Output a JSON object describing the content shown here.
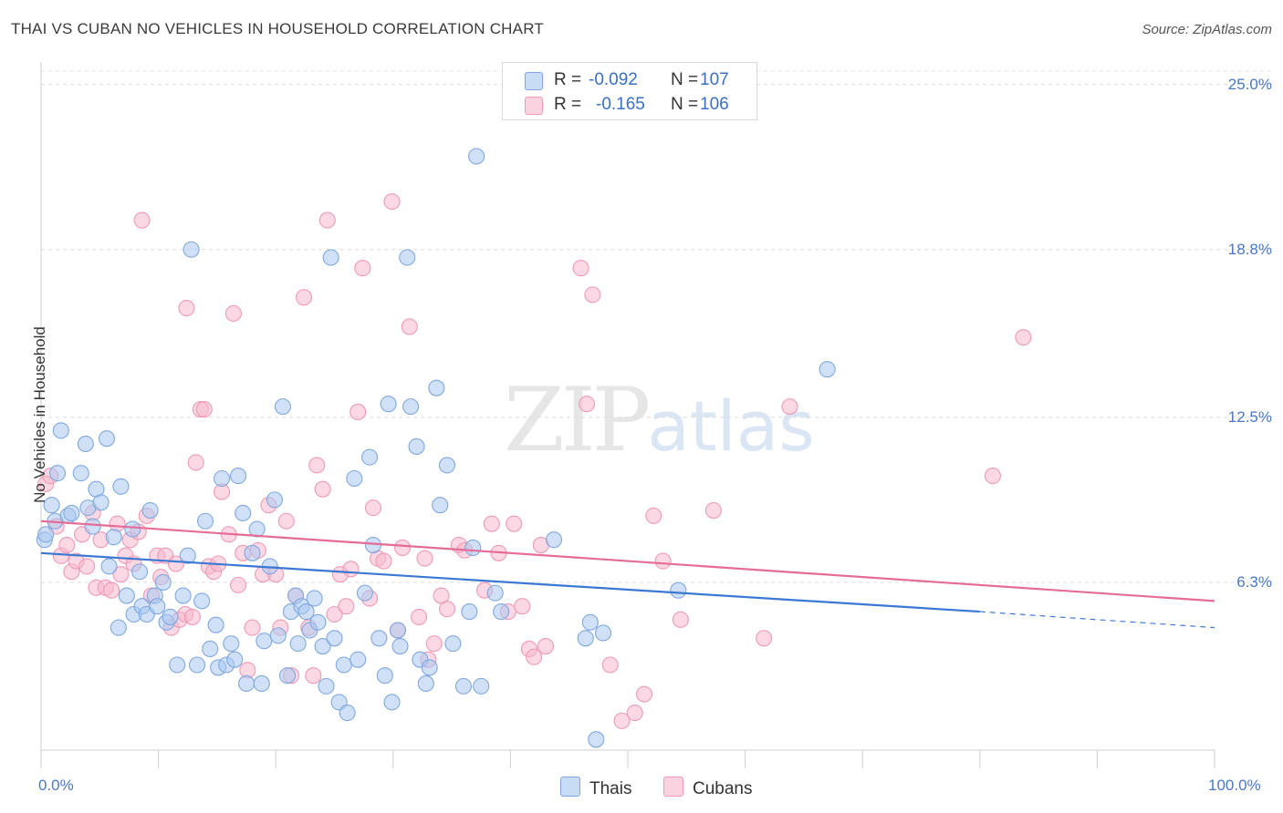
{
  "header": {
    "title": "THAI VS CUBAN NO VEHICLES IN HOUSEHOLD CORRELATION CHART",
    "source": "Source: ZipAtlas.com"
  },
  "watermark": {
    "zip": "ZIP",
    "atlas": "atlas"
  },
  "legend_top": {
    "rows": [
      {
        "r_label": "R =",
        "r_value": "-0.092",
        "n_label": "N =",
        "n_value": "107",
        "color": "#a9c8f0"
      },
      {
        "r_label": "R =",
        "r_value": "-0.165",
        "n_label": "N =",
        "n_value": "106",
        "color": "#f7b8cc"
      }
    ]
  },
  "legend_bottom": {
    "thais": "Thais",
    "cubans": "Cubans"
  },
  "chart_data": {
    "type": "scatter",
    "title": "THAI VS CUBAN NO VEHICLES IN HOUSEHOLD CORRELATION CHART",
    "ylabel": "No Vehicles in Household",
    "xlabel": "",
    "x_tick_labels": [
      "0.0%",
      "100.0%"
    ],
    "y_tick_labels": [
      "25.0%",
      "18.8%",
      "12.5%",
      "6.3%"
    ],
    "y_ticks": [
      25.0,
      18.8,
      12.5,
      6.3
    ],
    "xlim": [
      0,
      100
    ],
    "ylim": [
      0,
      25.5
    ],
    "grid": true,
    "legend": "top-center",
    "colors": {
      "thais": "#3a78d4",
      "cubans": "#e46c96",
      "thais_fill": "#a9c8f0",
      "cubans_fill": "#f7b8cc"
    },
    "series": [
      {
        "name": "Thais",
        "r": -0.092,
        "n": 107,
        "trend": {
          "x0": 0,
          "y0": 7.4,
          "x1": 80,
          "y1": 5.2,
          "dash_to_x": 100,
          "dash_to_y": 4.6
        },
        "points": [
          [
            0.3,
            7.9
          ],
          [
            0.4,
            8.1
          ],
          [
            0.9,
            9.2
          ],
          [
            1.2,
            8.6
          ],
          [
            1.4,
            10.4
          ],
          [
            1.7,
            12.0
          ],
          [
            2.3,
            8.8
          ],
          [
            2.6,
            8.9
          ],
          [
            3.4,
            10.4
          ],
          [
            3.8,
            11.5
          ],
          [
            4.0,
            9.1
          ],
          [
            4.4,
            8.4
          ],
          [
            4.7,
            9.8
          ],
          [
            5.1,
            9.3
          ],
          [
            5.6,
            11.7
          ],
          [
            5.8,
            6.9
          ],
          [
            6.2,
            8.0
          ],
          [
            6.6,
            4.6
          ],
          [
            6.8,
            9.9
          ],
          [
            7.3,
            5.8
          ],
          [
            7.8,
            8.3
          ],
          [
            7.9,
            5.1
          ],
          [
            8.4,
            6.7
          ],
          [
            8.6,
            5.4
          ],
          [
            9.0,
            5.1
          ],
          [
            9.3,
            9.0
          ],
          [
            9.7,
            5.8
          ],
          [
            9.9,
            5.4
          ],
          [
            10.4,
            6.3
          ],
          [
            10.7,
            4.8
          ],
          [
            11.0,
            5.0
          ],
          [
            11.6,
            3.2
          ],
          [
            12.1,
            5.8
          ],
          [
            12.5,
            7.3
          ],
          [
            12.8,
            18.8
          ],
          [
            13.3,
            3.2
          ],
          [
            13.7,
            5.6
          ],
          [
            14.0,
            8.6
          ],
          [
            14.4,
            3.8
          ],
          [
            14.9,
            4.7
          ],
          [
            15.1,
            3.1
          ],
          [
            15.4,
            10.2
          ],
          [
            15.8,
            3.2
          ],
          [
            16.2,
            4.0
          ],
          [
            16.5,
            3.4
          ],
          [
            16.8,
            10.3
          ],
          [
            17.2,
            8.9
          ],
          [
            17.5,
            2.5
          ],
          [
            18.0,
            7.4
          ],
          [
            18.4,
            8.3
          ],
          [
            18.8,
            2.5
          ],
          [
            19.0,
            4.1
          ],
          [
            19.5,
            6.9
          ],
          [
            19.9,
            9.4
          ],
          [
            20.2,
            4.3
          ],
          [
            20.6,
            12.9
          ],
          [
            21.0,
            2.8
          ],
          [
            21.3,
            5.2
          ],
          [
            21.7,
            5.8
          ],
          [
            21.9,
            4.0
          ],
          [
            22.2,
            5.4
          ],
          [
            22.6,
            5.2
          ],
          [
            22.9,
            4.5
          ],
          [
            23.3,
            5.7
          ],
          [
            23.6,
            4.8
          ],
          [
            24.0,
            3.9
          ],
          [
            24.3,
            2.4
          ],
          [
            24.7,
            18.5
          ],
          [
            25.0,
            4.2
          ],
          [
            25.4,
            1.8
          ],
          [
            25.8,
            3.2
          ],
          [
            26.1,
            1.4
          ],
          [
            26.7,
            10.2
          ],
          [
            27.0,
            3.4
          ],
          [
            27.6,
            5.9
          ],
          [
            28.0,
            11.0
          ],
          [
            28.3,
            7.7
          ],
          [
            28.8,
            4.2
          ],
          [
            29.3,
            2.8
          ],
          [
            29.6,
            13.0
          ],
          [
            29.9,
            1.8
          ],
          [
            30.4,
            4.5
          ],
          [
            30.6,
            3.9
          ],
          [
            31.2,
            18.5
          ],
          [
            31.5,
            12.9
          ],
          [
            32.0,
            11.4
          ],
          [
            32.3,
            3.4
          ],
          [
            32.8,
            2.5
          ],
          [
            33.1,
            3.1
          ],
          [
            33.7,
            13.6
          ],
          [
            34.0,
            9.2
          ],
          [
            34.6,
            10.7
          ],
          [
            35.1,
            4.0
          ],
          [
            36.0,
            2.4
          ],
          [
            36.5,
            5.2
          ],
          [
            36.8,
            7.6
          ],
          [
            37.1,
            22.3
          ],
          [
            37.5,
            2.4
          ],
          [
            38.7,
            5.9
          ],
          [
            39.2,
            5.2
          ],
          [
            43.7,
            7.9
          ],
          [
            46.4,
            4.2
          ],
          [
            46.8,
            4.8
          ],
          [
            47.3,
            0.4
          ],
          [
            47.9,
            4.4
          ],
          [
            54.3,
            6.0
          ],
          [
            67.0,
            14.3
          ]
        ]
      },
      {
        "name": "Cubans",
        "r": -0.165,
        "n": 106,
        "trend": {
          "x0": 0,
          "y0": 8.6,
          "x1": 100,
          "y1": 5.6
        },
        "points": [
          [
            0.4,
            10.0
          ],
          [
            0.8,
            10.3
          ],
          [
            1.3,
            8.4
          ],
          [
            1.7,
            7.3
          ],
          [
            2.2,
            7.7
          ],
          [
            2.6,
            6.7
          ],
          [
            3.0,
            7.1
          ],
          [
            3.5,
            8.1
          ],
          [
            3.9,
            6.9
          ],
          [
            4.4,
            8.9
          ],
          [
            4.7,
            6.1
          ],
          [
            5.1,
            7.9
          ],
          [
            5.5,
            6.1
          ],
          [
            6.0,
            6.0
          ],
          [
            6.5,
            8.5
          ],
          [
            6.8,
            6.6
          ],
          [
            7.2,
            7.3
          ],
          [
            7.6,
            7.9
          ],
          [
            7.9,
            7.0
          ],
          [
            8.3,
            8.2
          ],
          [
            8.6,
            19.9
          ],
          [
            9.0,
            8.8
          ],
          [
            9.4,
            5.8
          ],
          [
            9.9,
            7.3
          ],
          [
            10.2,
            6.5
          ],
          [
            10.6,
            7.3
          ],
          [
            11.1,
            4.6
          ],
          [
            11.5,
            7.0
          ],
          [
            11.8,
            4.9
          ],
          [
            12.3,
            5.1
          ],
          [
            12.4,
            16.6
          ],
          [
            12.9,
            5.0
          ],
          [
            13.2,
            10.8
          ],
          [
            13.6,
            12.8
          ],
          [
            13.9,
            12.8
          ],
          [
            14.3,
            6.9
          ],
          [
            14.7,
            6.7
          ],
          [
            15.1,
            7.0
          ],
          [
            15.4,
            9.7
          ],
          [
            16.0,
            8.1
          ],
          [
            16.4,
            16.4
          ],
          [
            16.8,
            6.2
          ],
          [
            17.2,
            7.4
          ],
          [
            17.6,
            3.0
          ],
          [
            18.0,
            4.6
          ],
          [
            18.5,
            7.5
          ],
          [
            18.9,
            6.6
          ],
          [
            19.4,
            9.2
          ],
          [
            20.0,
            6.6
          ],
          [
            20.4,
            4.6
          ],
          [
            20.9,
            8.6
          ],
          [
            21.3,
            2.8
          ],
          [
            21.7,
            5.8
          ],
          [
            22.4,
            17.0
          ],
          [
            22.8,
            4.6
          ],
          [
            23.2,
            2.8
          ],
          [
            23.5,
            10.7
          ],
          [
            24.0,
            9.8
          ],
          [
            24.4,
            19.9
          ],
          [
            25.0,
            5.1
          ],
          [
            25.5,
            6.6
          ],
          [
            26.0,
            5.4
          ],
          [
            26.4,
            6.8
          ],
          [
            27.0,
            12.7
          ],
          [
            27.4,
            18.1
          ],
          [
            28.0,
            5.7
          ],
          [
            28.3,
            9.1
          ],
          [
            28.7,
            7.2
          ],
          [
            29.2,
            7.1
          ],
          [
            29.9,
            20.6
          ],
          [
            30.4,
            4.5
          ],
          [
            30.8,
            7.6
          ],
          [
            31.4,
            15.9
          ],
          [
            32.2,
            5.0
          ],
          [
            32.7,
            7.2
          ],
          [
            33.0,
            3.4
          ],
          [
            33.5,
            4.0
          ],
          [
            34.1,
            5.8
          ],
          [
            34.6,
            5.3
          ],
          [
            35.6,
            7.7
          ],
          [
            36.1,
            7.5
          ],
          [
            37.8,
            6.0
          ],
          [
            38.4,
            8.5
          ],
          [
            39.0,
            7.4
          ],
          [
            39.8,
            5.2
          ],
          [
            40.3,
            8.5
          ],
          [
            41.0,
            5.4
          ],
          [
            41.6,
            3.8
          ],
          [
            42.0,
            3.5
          ],
          [
            42.6,
            7.7
          ],
          [
            43.0,
            3.9
          ],
          [
            46.0,
            18.1
          ],
          [
            46.5,
            13.0
          ],
          [
            47.0,
            17.1
          ],
          [
            48.5,
            3.2
          ],
          [
            49.5,
            1.1
          ],
          [
            50.6,
            1.4
          ],
          [
            51.4,
            2.1
          ],
          [
            52.2,
            8.8
          ],
          [
            53.0,
            7.1
          ],
          [
            54.5,
            4.9
          ],
          [
            57.3,
            9.0
          ],
          [
            61.6,
            4.2
          ],
          [
            63.8,
            12.9
          ],
          [
            81.1,
            10.3
          ],
          [
            83.7,
            15.5
          ]
        ]
      }
    ]
  }
}
